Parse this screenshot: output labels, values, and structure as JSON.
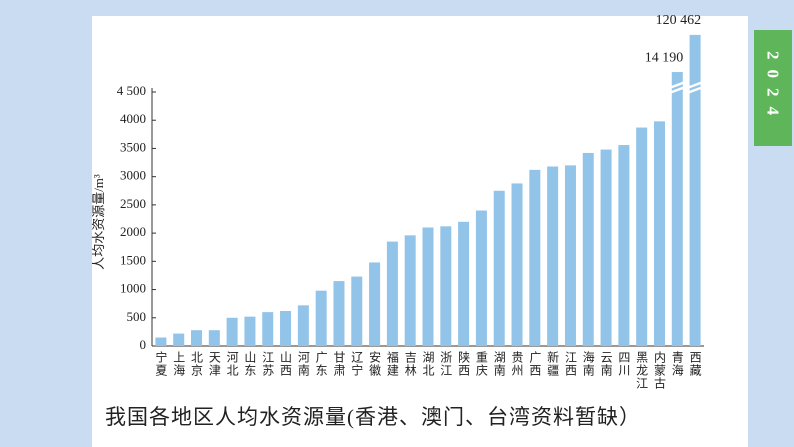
{
  "badge": "2024",
  "caption": "我国各地区人均水资源量(香港、澳门、台湾资料暂缺）",
  "chart_data": {
    "type": "bar",
    "ylabel": "人均水资源量/m³",
    "categories": [
      "宁夏",
      "上海",
      "北京",
      "天津",
      "河北",
      "山东",
      "江苏",
      "山西",
      "河南",
      "广东",
      "甘肃",
      "辽宁",
      "安徽",
      "福建",
      "吉林",
      "湖北",
      "浙江",
      "陕西",
      "重庆",
      "湖南",
      "贵州",
      "广西",
      "新疆",
      "江西",
      "海南",
      "云南",
      "四川",
      "黑龙江",
      "内蒙古",
      "青海",
      "西藏"
    ],
    "values": [
      150,
      220,
      280,
      280,
      500,
      520,
      600,
      620,
      720,
      980,
      1150,
      1230,
      1480,
      1850,
      1960,
      2100,
      2120,
      2200,
      2400,
      2750,
      2880,
      3120,
      3180,
      3200,
      3420,
      3480,
      3560,
      3870,
      3980,
      14190,
      120462
    ],
    "value_labels": [
      null,
      null,
      null,
      null,
      null,
      null,
      null,
      null,
      null,
      null,
      null,
      null,
      null,
      null,
      null,
      null,
      null,
      null,
      null,
      null,
      null,
      null,
      null,
      null,
      null,
      null,
      null,
      null,
      null,
      "14 190",
      "120 462"
    ],
    "color": "#92c3e8",
    "ylim": [
      0,
      4500
    ],
    "yticks": [
      0,
      500,
      1000,
      1500,
      2000,
      2500,
      3000,
      3500,
      4000,
      {
        "value": 4500,
        "label": "4 500"
      }
    ]
  }
}
